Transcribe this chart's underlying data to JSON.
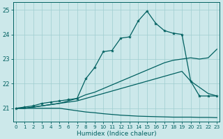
{
  "xlabel": "Humidex (Indice chaleur)",
  "bg_color": "#cce8ea",
  "grid_color": "#9fcdd0",
  "line_color": "#006060",
  "xlim": [
    -0.3,
    23.3
  ],
  "ylim": [
    20.45,
    25.3
  ],
  "yticks": [
    21,
    22,
    23,
    24,
    25
  ],
  "xticks": [
    0,
    1,
    2,
    3,
    4,
    5,
    6,
    7,
    8,
    9,
    10,
    11,
    12,
    13,
    14,
    15,
    16,
    17,
    18,
    19,
    20,
    21,
    22,
    23
  ],
  "line_jagged_x": [
    0,
    1,
    2,
    3,
    4,
    5,
    6,
    7,
    8,
    9,
    10,
    11,
    12,
    13,
    14,
    15,
    16,
    17,
    18,
    19,
    20,
    21,
    22,
    23
  ],
  "line_jagged_y": [
    21.0,
    21.05,
    21.1,
    21.2,
    21.25,
    21.3,
    21.35,
    21.4,
    22.2,
    22.65,
    23.3,
    23.35,
    23.85,
    23.9,
    24.55,
    24.95,
    24.45,
    24.15,
    24.05,
    24.0,
    22.1,
    21.5,
    21.5,
    21.5
  ],
  "line_diag_x": [
    0,
    1,
    2,
    3,
    4,
    5,
    6,
    7,
    8,
    9,
    10,
    11,
    12,
    13,
    14,
    15,
    16,
    17,
    18,
    19,
    20,
    21,
    22,
    23
  ],
  "line_diag_y": [
    21.0,
    21.0,
    21.05,
    21.1,
    21.15,
    21.2,
    21.3,
    21.4,
    21.55,
    21.65,
    21.8,
    21.95,
    22.1,
    22.25,
    22.4,
    22.55,
    22.7,
    22.85,
    22.95,
    23.0,
    23.05,
    23.0,
    23.05,
    23.4
  ],
  "line_mid_x": [
    0,
    1,
    2,
    3,
    4,
    5,
    6,
    7,
    8,
    9,
    10,
    11,
    12,
    13,
    14,
    15,
    16,
    17,
    18,
    19,
    20,
    21,
    22,
    23
  ],
  "line_mid_y": [
    21.0,
    21.0,
    21.05,
    21.1,
    21.15,
    21.2,
    21.25,
    21.3,
    21.4,
    21.5,
    21.6,
    21.7,
    21.8,
    21.9,
    22.0,
    22.1,
    22.2,
    22.3,
    22.4,
    22.5,
    22.1,
    21.85,
    21.6,
    21.5
  ],
  "line_bot_x": [
    0,
    1,
    2,
    3,
    4,
    5,
    6,
    7,
    8,
    9,
    10,
    11,
    12,
    13,
    14,
    15,
    16,
    17,
    18,
    19,
    20,
    21,
    22,
    23
  ],
  "line_bot_y": [
    21.0,
    21.0,
    21.0,
    21.0,
    21.0,
    21.0,
    20.95,
    20.9,
    20.85,
    20.82,
    20.78,
    20.75,
    20.72,
    20.7,
    20.68,
    20.67,
    20.66,
    20.65,
    20.64,
    20.64,
    20.64,
    20.63,
    20.63,
    20.62
  ]
}
